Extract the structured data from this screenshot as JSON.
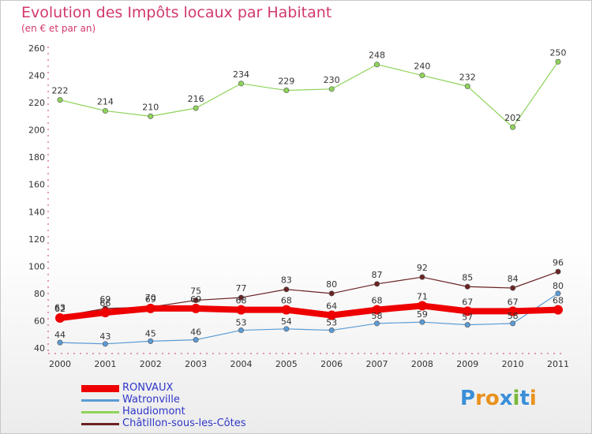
{
  "title": "Evolution des Impôts locaux par Habitant",
  "subtitle": "(en € et par an)",
  "logo": {
    "letters": [
      "P",
      "r",
      "o",
      "x",
      "i",
      "t",
      "i"
    ],
    "colors": [
      "#3a8fd8",
      "#e8911d",
      "#e8911d",
      "#3a8fd8",
      "#79b83a",
      "#3a8fd8",
      "#e8911d"
    ]
  },
  "chart_data": {
    "type": "line",
    "title": "Evolution des Impôts locaux par Habitant",
    "subtitle": "(en € et par an)",
    "xlabel": "",
    "ylabel": "",
    "x": [
      "2000",
      "2001",
      "2002",
      "2003",
      "2004",
      "2005",
      "2006",
      "2007",
      "2008",
      "2009",
      "2010",
      "2011"
    ],
    "ylim": [
      40,
      260
    ],
    "yticks": [
      "40",
      "60",
      "80",
      "100",
      "120",
      "140",
      "160",
      "180",
      "200",
      "220",
      "240",
      "260"
    ],
    "grid": false,
    "legend_position": "bottom-left",
    "series": [
      {
        "name": "RONVAUX",
        "color": "#ee0000",
        "values": [
          62,
          66,
          69,
          69,
          68,
          68,
          64,
          68,
          71,
          67,
          67,
          68
        ],
        "labels": [
          "62",
          "66",
          "69",
          "69",
          "68",
          "68",
          "64",
          "68",
          "71",
          "67",
          "67",
          "68"
        ]
      },
      {
        "name": "Watronville",
        "color": "#5b9bd5",
        "values": [
          44,
          43,
          45,
          46,
          53,
          54,
          53,
          58,
          59,
          57,
          58,
          80
        ],
        "labels": [
          "44",
          "43",
          "45",
          "46",
          "53",
          "54",
          "53",
          "58",
          "59",
          "57",
          "58",
          "80"
        ]
      },
      {
        "name": "Haudiomont",
        "color": "#8fd35a",
        "values": [
          222,
          214,
          210,
          216,
          234,
          229,
          230,
          248,
          240,
          232,
          202,
          250
        ],
        "labels": [
          "222",
          "214",
          "210",
          "216",
          "234",
          "229",
          "230",
          "248",
          "240",
          "232",
          "202",
          "250"
        ]
      },
      {
        "name": "Châtillon-sous-les-Côtes",
        "color": "#6b2323",
        "values": [
          63,
          69,
          70,
          75,
          77,
          83,
          80,
          87,
          92,
          85,
          84,
          96
        ],
        "labels": [
          "63",
          "69",
          "70",
          "75",
          "77",
          "83",
          "80",
          "87",
          "92",
          "85",
          "84",
          "96"
        ]
      }
    ]
  }
}
